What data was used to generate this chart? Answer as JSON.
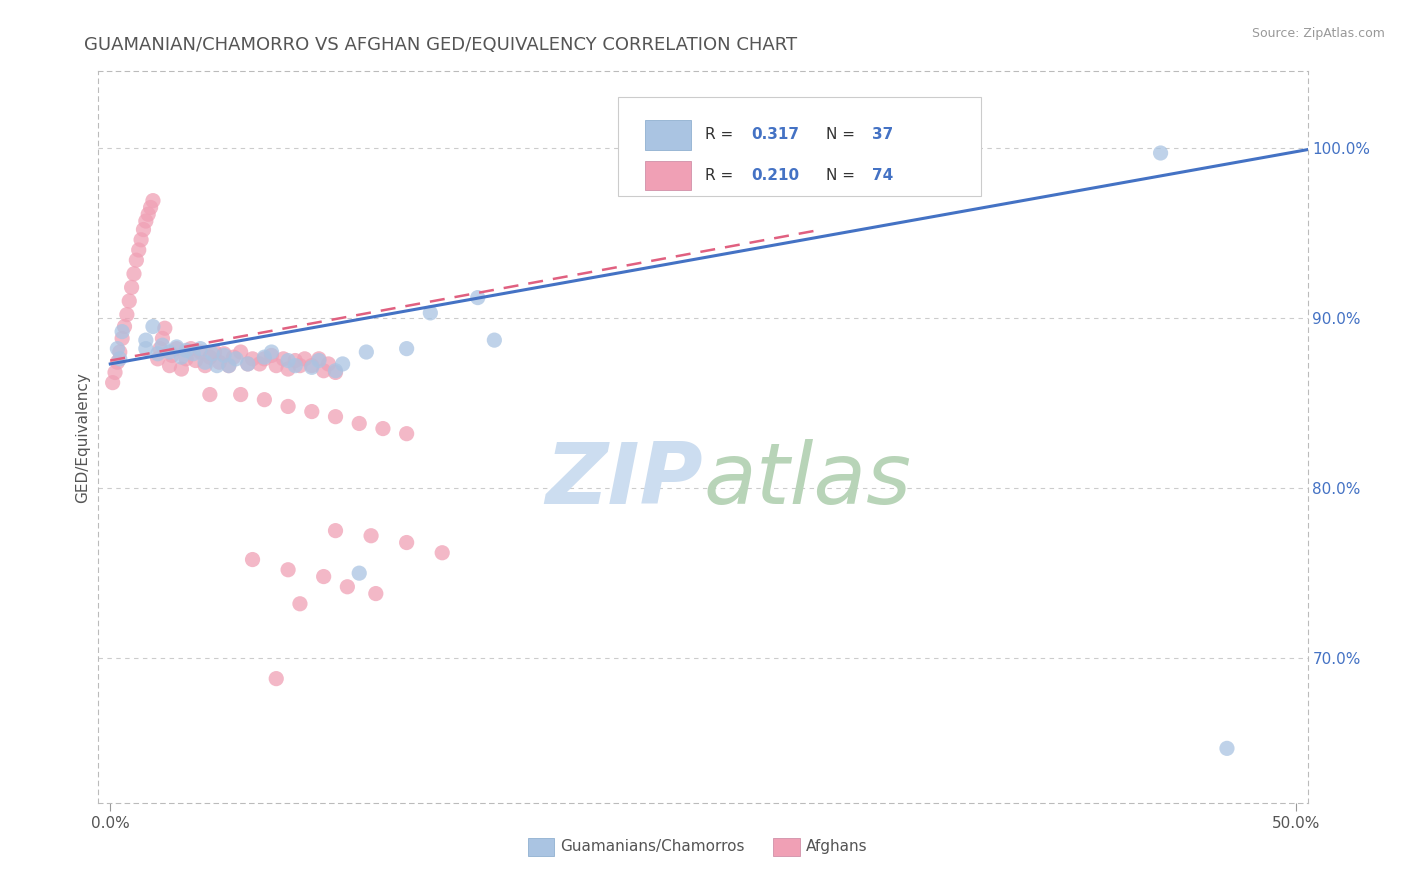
{
  "title": "GUAMANIAN/CHAMORRO VS AFGHAN GED/EQUIVALENCY CORRELATION CHART",
  "source": "Source: ZipAtlas.com",
  "ylabel": "GED/Equivalency",
  "ytick_vals": [
    0.7,
    0.8,
    0.9,
    1.0
  ],
  "ytick_labels": [
    "70.0%",
    "80.0%",
    "90.0%",
    "100.0%"
  ],
  "xlim": [
    -0.005,
    0.505
  ],
  "ylim": [
    0.615,
    1.045
  ],
  "color_guam": "#aac4e2",
  "color_afghan": "#f0a0b5",
  "color_guam_line": "#4472c4",
  "color_afghan_line": "#e06080",
  "color_blue_text": "#4472c4",
  "watermark_zip_color": "#ccddf0",
  "watermark_atlas_color": "#b8d4b8",
  "guam_x": [
    0.003,
    0.004,
    0.005,
    0.015,
    0.015,
    0.018,
    0.02,
    0.022,
    0.025,
    0.028,
    0.03,
    0.032,
    0.035,
    0.038,
    0.04,
    0.043,
    0.045,
    0.048,
    0.05,
    0.053,
    0.058,
    0.065,
    0.068,
    0.075,
    0.078,
    0.085,
    0.088,
    0.095,
    0.098,
    0.105,
    0.108,
    0.125,
    0.135,
    0.155,
    0.162,
    0.443,
    0.471
  ],
  "guam_y": [
    0.882,
    0.876,
    0.892,
    0.882,
    0.887,
    0.895,
    0.879,
    0.884,
    0.88,
    0.883,
    0.877,
    0.881,
    0.879,
    0.882,
    0.874,
    0.879,
    0.872,
    0.878,
    0.872,
    0.876,
    0.873,
    0.877,
    0.88,
    0.875,
    0.872,
    0.871,
    0.875,
    0.869,
    0.873,
    0.75,
    0.88,
    0.882,
    0.903,
    0.912,
    0.887,
    0.997,
    0.647
  ],
  "afghan_x": [
    0.001,
    0.002,
    0.003,
    0.004,
    0.005,
    0.006,
    0.007,
    0.008,
    0.009,
    0.01,
    0.011,
    0.012,
    0.013,
    0.014,
    0.015,
    0.016,
    0.017,
    0.018,
    0.02,
    0.021,
    0.022,
    0.023,
    0.025,
    0.026,
    0.028,
    0.03,
    0.032,
    0.034,
    0.036,
    0.038,
    0.04,
    0.042,
    0.044,
    0.046,
    0.048,
    0.05,
    0.052,
    0.055,
    0.058,
    0.06,
    0.063,
    0.065,
    0.068,
    0.07,
    0.073,
    0.075,
    0.078,
    0.08,
    0.082,
    0.085,
    0.088,
    0.09,
    0.092,
    0.095,
    0.042,
    0.055,
    0.065,
    0.075,
    0.085,
    0.095,
    0.105,
    0.115,
    0.125,
    0.095,
    0.11,
    0.125,
    0.14,
    0.06,
    0.075,
    0.09,
    0.1,
    0.112,
    0.07,
    0.08
  ],
  "afghan_y": [
    0.862,
    0.868,
    0.874,
    0.88,
    0.888,
    0.895,
    0.902,
    0.91,
    0.918,
    0.926,
    0.934,
    0.94,
    0.946,
    0.952,
    0.957,
    0.961,
    0.965,
    0.969,
    0.876,
    0.882,
    0.888,
    0.894,
    0.872,
    0.878,
    0.882,
    0.87,
    0.876,
    0.882,
    0.875,
    0.88,
    0.872,
    0.877,
    0.88,
    0.874,
    0.879,
    0.872,
    0.877,
    0.88,
    0.873,
    0.876,
    0.873,
    0.876,
    0.878,
    0.872,
    0.876,
    0.87,
    0.875,
    0.872,
    0.876,
    0.872,
    0.876,
    0.869,
    0.873,
    0.868,
    0.855,
    0.855,
    0.852,
    0.848,
    0.845,
    0.842,
    0.838,
    0.835,
    0.832,
    0.775,
    0.772,
    0.768,
    0.762,
    0.758,
    0.752,
    0.748,
    0.742,
    0.738,
    0.688,
    0.732
  ],
  "guam_line_x": [
    0.0,
    0.505
  ],
  "guam_line_y": [
    0.873,
    0.999
  ],
  "afghan_line_x": [
    0.0,
    0.3
  ],
  "afghan_line_y": [
    0.875,
    0.952
  ]
}
